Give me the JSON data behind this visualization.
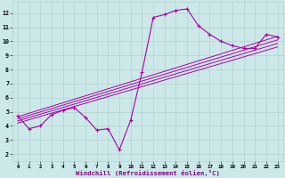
{
  "background_color": "#cce8e8",
  "line_color": "#aa00aa",
  "xlabel": "Windchill (Refroidissement éolien,°C)",
  "xlim": [
    -0.5,
    23.5
  ],
  "ylim": [
    1.5,
    12.8
  ],
  "xticks": [
    0,
    1,
    2,
    3,
    4,
    5,
    6,
    7,
    8,
    9,
    10,
    11,
    12,
    13,
    14,
    15,
    16,
    17,
    18,
    19,
    20,
    21,
    22,
    23
  ],
  "yticks": [
    2,
    3,
    4,
    5,
    6,
    7,
    8,
    9,
    10,
    11,
    12
  ],
  "main_x": [
    0,
    1,
    2,
    3,
    4,
    5,
    6,
    7,
    8,
    9,
    10,
    11,
    12,
    13,
    14,
    15,
    16,
    17,
    18,
    19,
    20,
    21,
    22,
    23
  ],
  "main_y": [
    4.7,
    3.8,
    4.0,
    4.8,
    5.1,
    5.3,
    4.6,
    3.7,
    3.8,
    2.3,
    4.4,
    7.8,
    11.7,
    11.9,
    12.2,
    12.3,
    11.1,
    10.5,
    10.0,
    9.7,
    9.5,
    9.5,
    10.5,
    10.3
  ],
  "line2_x": [
    0,
    23
  ],
  "line2_y": [
    4.65,
    10.35
  ],
  "line3_x": [
    0,
    23
  ],
  "line3_y": [
    4.5,
    10.1
  ],
  "line4_x": [
    0,
    23
  ],
  "line4_y": [
    4.35,
    9.85
  ],
  "line5_x": [
    0,
    23
  ],
  "line5_y": [
    4.2,
    9.6
  ],
  "grid_color": "#aacccc",
  "spine_color": "#aacccc"
}
